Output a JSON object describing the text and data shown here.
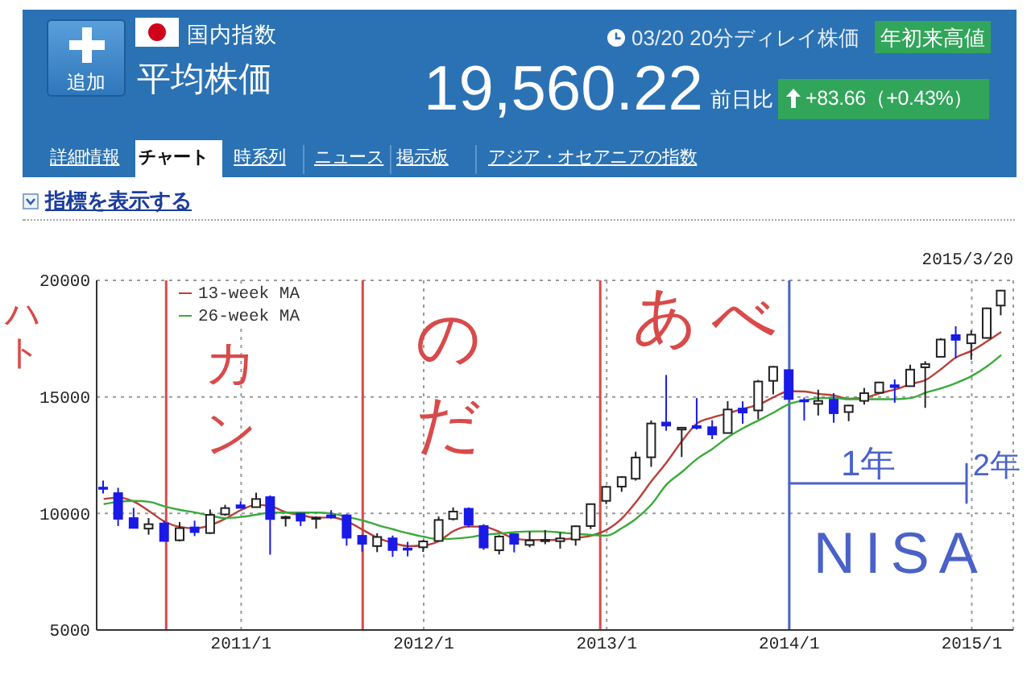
{
  "chart_data": [
    {
      "type": "other",
      "title": "平均株価",
      "annotations": [
        "追加",
        "国内指数",
        "03/20 20分ディレイ株価",
        "年初来高値",
        "19,560.22",
        "前日比",
        "+83.66（+0.43%）",
        "詳細情報",
        "チャート",
        "時系列",
        "ニュース",
        "掲示板",
        "アジア・オセアニアの指数",
        "指標を表示する"
      ]
    },
    {
      "type": "candlestick",
      "subtitle": "2015/3/20",
      "x": [
        "2010-04",
        "2010-05",
        "2010-06",
        "2010-07",
        "2010-08",
        "2010-09",
        "2010-10",
        "2010-11",
        "2010-12",
        "2011-01",
        "2011-02",
        "2011-03",
        "2011-04",
        "2011-05",
        "2011-06",
        "2011-07",
        "2011-08",
        "2011-09",
        "2011-10",
        "2011-11",
        "2011-12",
        "2012-01",
        "2012-02",
        "2012-03",
        "2012-04",
        "2012-05",
        "2012-06",
        "2012-07",
        "2012-08",
        "2012-09",
        "2012-10",
        "2012-11",
        "2012-12",
        "2013-01",
        "2013-02",
        "2013-03",
        "2013-04",
        "2013-05",
        "2013-06",
        "2013-07",
        "2013-08",
        "2013-09",
        "2013-10",
        "2013-11",
        "2013-12",
        "2014-01",
        "2014-02",
        "2014-03",
        "2014-04",
        "2014-05",
        "2014-06",
        "2014-07",
        "2014-08",
        "2014-09",
        "2014-10",
        "2014-11",
        "2014-12",
        "2015-01",
        "2015-02",
        "2015-03"
      ],
      "ohlc": [
        [
          11110,
          11410,
          10860,
          11060
        ],
        [
          10870,
          11100,
          9460,
          9770
        ],
        [
          9800,
          10240,
          9380,
          9380
        ],
        [
          9350,
          9800,
          9090,
          9540
        ],
        [
          9570,
          9690,
          8800,
          8820
        ],
        [
          8850,
          9630,
          8800,
          9370
        ],
        [
          9400,
          9690,
          9030,
          9200
        ],
        [
          9160,
          10170,
          9120,
          9940
        ],
        [
          9960,
          10370,
          9900,
          10230
        ],
        [
          10350,
          10520,
          10220,
          10240
        ],
        [
          10270,
          10890,
          10270,
          10620
        ],
        [
          10700,
          10770,
          8230,
          9760
        ],
        [
          9820,
          9900,
          9440,
          9850
        ],
        [
          9990,
          10020,
          9460,
          9690
        ],
        [
          9780,
          9880,
          9350,
          9820
        ],
        [
          9920,
          10140,
          9770,
          9830
        ],
        [
          9920,
          9970,
          8620,
          8960
        ],
        [
          9040,
          9090,
          8360,
          8700
        ],
        [
          8600,
          9150,
          8340,
          8990
        ],
        [
          8930,
          9050,
          8140,
          8430
        ],
        [
          8500,
          8780,
          8160,
          8460
        ],
        [
          8550,
          8860,
          8350,
          8800
        ],
        [
          8820,
          9870,
          8800,
          9720
        ],
        [
          9760,
          10260,
          9700,
          10080
        ],
        [
          10200,
          10260,
          9410,
          9520
        ],
        [
          9460,
          9540,
          8440,
          8540
        ],
        [
          8420,
          9070,
          8240,
          9010
        ],
        [
          9110,
          9130,
          8330,
          8700
        ],
        [
          8650,
          9220,
          8550,
          8840
        ],
        [
          8810,
          9290,
          8680,
          8870
        ],
        [
          8810,
          9180,
          8490,
          8930
        ],
        [
          8880,
          9480,
          8620,
          9450
        ],
        [
          9460,
          10430,
          9330,
          10400
        ],
        [
          10540,
          11190,
          10400,
          11140
        ],
        [
          11150,
          11600,
          10930,
          11560
        ],
        [
          11490,
          12650,
          11410,
          12400
        ],
        [
          12410,
          13990,
          12000,
          13860
        ],
        [
          13900,
          15940,
          13550,
          13770
        ],
        [
          13600,
          13710,
          12420,
          13680
        ],
        [
          13750,
          14950,
          13600,
          13670
        ],
        [
          13700,
          14000,
          13190,
          13390
        ],
        [
          13450,
          14820,
          13450,
          14460
        ],
        [
          14500,
          14810,
          13850,
          14330
        ],
        [
          14420,
          15730,
          14040,
          15660
        ],
        [
          15690,
          16320,
          15110,
          16290
        ],
        [
          16150,
          16160,
          14910,
          14910
        ],
        [
          14860,
          14970,
          13990,
          14840
        ],
        [
          14700,
          15310,
          14200,
          14830
        ],
        [
          14880,
          15160,
          13890,
          14300
        ],
        [
          14350,
          14650,
          13960,
          14630
        ],
        [
          14830,
          15380,
          14670,
          15160
        ],
        [
          15180,
          15650,
          15160,
          15620
        ],
        [
          15500,
          15750,
          14750,
          15420
        ],
        [
          15460,
          16380,
          15460,
          16170
        ],
        [
          16270,
          16530,
          14530,
          16410
        ],
        [
          16720,
          17520,
          16720,
          17460
        ],
        [
          17650,
          18030,
          16670,
          17450
        ],
        [
          17300,
          17850,
          16590,
          17670
        ],
        [
          17530,
          18830,
          17500,
          18800
        ],
        [
          18920,
          19590,
          18500,
          19560
        ]
      ],
      "colors": [
        "#1a1ae6",
        "#1a1ae6",
        "#1a1ae6",
        "#ffffff",
        "#1a1ae6",
        "#ffffff",
        "#1a1ae6",
        "#ffffff",
        "#ffffff",
        "#1a1ae6",
        "#ffffff",
        "#1a1ae6",
        "#ffffff",
        "#1a1ae6",
        "#ffffff",
        "#1a1ae6",
        "#1a1ae6",
        "#1a1ae6",
        "#ffffff",
        "#1a1ae6",
        "#1a1ae6",
        "#ffffff",
        "#ffffff",
        "#ffffff",
        "#1a1ae6",
        "#1a1ae6",
        "#ffffff",
        "#1a1ae6",
        "#ffffff",
        "#ffffff",
        "#ffffff",
        "#ffffff",
        "#ffffff",
        "#ffffff",
        "#ffffff",
        "#ffffff",
        "#ffffff",
        "#1a1ae6",
        "#ffffff",
        "#1a1ae6",
        "#1a1ae6",
        "#ffffff",
        "#1a1ae6",
        "#ffffff",
        "#ffffff",
        "#1a1ae6",
        "#1a1ae6",
        "#ffffff",
        "#1a1ae6",
        "#ffffff",
        "#ffffff",
        "#ffffff",
        "#1a1ae6",
        "#ffffff",
        "#ffffff",
        "#ffffff",
        "#1a1ae6",
        "#ffffff",
        "#ffffff",
        "#ffffff"
      ],
      "series": [
        {
          "type": "line",
          "name": "13-week MA",
          "color": "#b8403a",
          "values": [
            10620,
            10680,
            10500,
            10100,
            9650,
            9420,
            9360,
            9500,
            9780,
            10150,
            10370,
            10310,
            10050,
            9930,
            9810,
            9840,
            9650,
            9300,
            8950,
            8730,
            8600,
            8630,
            8820,
            9250,
            9440,
            9430,
            9200,
            8920,
            8860,
            8860,
            8880,
            8950,
            9050,
            9300,
            9800,
            10500,
            11400,
            12200,
            13120,
            13870,
            14120,
            14300,
            14490,
            14670,
            14990,
            15250,
            15230,
            15130,
            15060,
            14920,
            14970,
            15160,
            15320,
            15550,
            15730,
            16200,
            16700,
            16980,
            17390,
            17790
          ]
        },
        {
          "type": "line",
          "name": "26-week MA",
          "color": "#3aaa3a",
          "values": [
            10400,
            10500,
            10540,
            10500,
            10300,
            10150,
            10040,
            9900,
            9800,
            9850,
            9950,
            10040,
            10040,
            10040,
            10040,
            10000,
            9850,
            9700,
            9500,
            9320,
            9150,
            9000,
            8900,
            8920,
            8980,
            9080,
            9140,
            9200,
            9230,
            9230,
            9180,
            9120,
            9080,
            9050,
            9380,
            9780,
            10400,
            11250,
            11790,
            12350,
            12780,
            13280,
            13660,
            14000,
            14330,
            14700,
            14850,
            14950,
            14960,
            14900,
            14900,
            14900,
            14900,
            14950,
            15180,
            15370,
            15600,
            15900,
            16320,
            16800
          ]
        }
      ],
      "xlim": [
        "2010-03-18",
        "2015-03-25"
      ],
      "xticks": [
        {
          "value": "2011-01",
          "label": "2011/1"
        },
        {
          "value": "2012-01",
          "label": "2012/1"
        },
        {
          "value": "2013-01",
          "label": "2013/1"
        },
        {
          "value": "2014-01",
          "label": "2014/1"
        },
        {
          "value": "2015-01",
          "label": "2015/1"
        }
      ],
      "ylim": [
        5000,
        20000
      ],
      "yticks": [
        5000,
        10000,
        15000,
        20000
      ],
      "grid": true,
      "legend": "top left",
      "ref_lines": [
        {
          "axis": "x",
          "value": "2010-08-04",
          "label": "カン",
          "color": "#d94a4a"
        },
        {
          "axis": "x",
          "value": "2011-09-01",
          "label": "のだ",
          "color": "#d94a4a"
        },
        {
          "axis": "x",
          "value": "2012-12-19",
          "label": "あべ",
          "color": "#d94a4a"
        },
        {
          "axis": "x",
          "value": "2014-01-01",
          "label": "NISA",
          "color": "#4a62c8"
        }
      ],
      "annotations": [
        "ハト",
        "1年",
        {
          "text": "2年",
          "x": "2014-01-01",
          "y": 11300
        }
      ]
    }
  ]
}
